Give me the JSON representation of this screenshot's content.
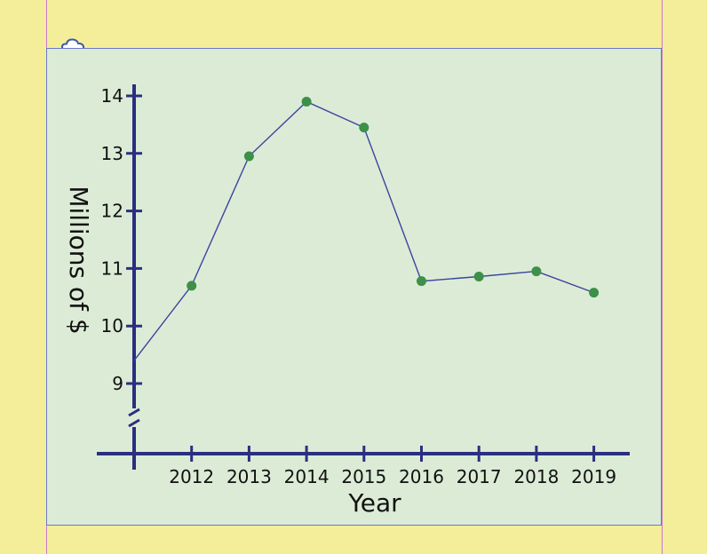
{
  "chart_data": {
    "type": "line",
    "title": "",
    "xlabel": "Year",
    "ylabel": "Millions of $",
    "x": [
      2011,
      2012,
      2013,
      2014,
      2015,
      2016,
      2017,
      2018,
      2019
    ],
    "x_tick_labels": [
      "2012",
      "2013",
      "2014",
      "2015",
      "2016",
      "2017",
      "2018",
      "2019"
    ],
    "y_ticks": [
      9,
      10,
      11,
      12,
      13,
      14
    ],
    "ylim": [
      8.2,
      14.2
    ],
    "y_axis_break": true,
    "grid": false,
    "series": [
      {
        "values": [
          9.4,
          10.7,
          12.95,
          13.9,
          13.45,
          10.78,
          10.86,
          10.95,
          10.58
        ],
        "marker_shown": [
          false,
          true,
          true,
          true,
          true,
          true,
          true,
          true,
          true
        ],
        "line_color": "#3a44a0",
        "marker_color": "#3c9048"
      }
    ],
    "axis_color": "#2a2f80"
  },
  "icons": {
    "corner": "cloud-icon"
  }
}
